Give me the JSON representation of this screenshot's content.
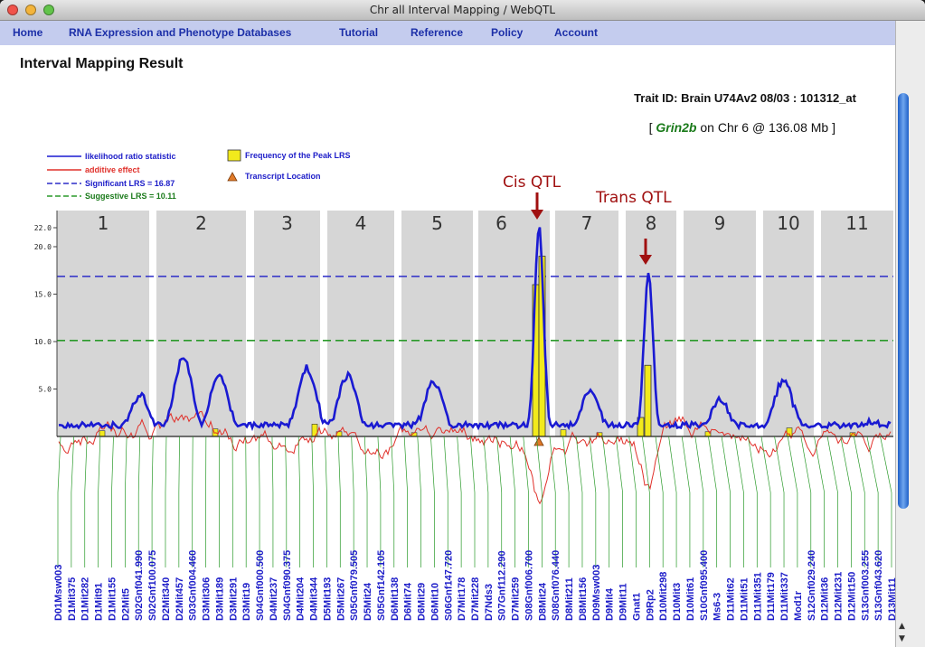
{
  "window": {
    "title": "Chr all Interval Mapping / WebQTL"
  },
  "nav": {
    "items": [
      "Home",
      "RNA Expression and Phenotype Databases",
      "Tutorial",
      "Reference",
      "Policy",
      "Account"
    ]
  },
  "page": {
    "title": "Interval Mapping Result",
    "trait_id": "Trait ID: Brain U74Av2 08/03 : 101312_at",
    "gene_prefix": "[ ",
    "gene": "Grin2b",
    "gene_suffix": " on Chr 6 @ 136.08 Mb ]"
  },
  "colors": {
    "lrs": "#1a1ad2",
    "additive": "#e0302a",
    "significant": "#2c2cc8",
    "suggestive": "#2a9a2a",
    "bars": "#f2ea1c",
    "marker_lines": "#2a9a2a",
    "annotation": "#a01010",
    "chr_band": "#d6d6d6",
    "triangle": "#e07a28"
  },
  "chart_data": {
    "type": "line",
    "legend": [
      "likelihood ratio statistic",
      "additive effect",
      "Significant LRS = 16.87",
      "Suggestive LRS = 10.11",
      "Frequency of the Peak LRS",
      "Transcript Location"
    ],
    "annotations": [
      "Cis QTL",
      "Trans QTL"
    ],
    "y_ticks": [
      22.0,
      20.0,
      15.0,
      10.0,
      5.0
    ],
    "y_tick_labels": [
      "22.0",
      "20.0",
      "15.0",
      "10.0",
      "5.0"
    ],
    "ylim": [
      0,
      23
    ],
    "significant": 16.87,
    "suggestive": 10.11,
    "chromosomes": [
      "1",
      "2",
      "3",
      "4",
      "5",
      "6",
      "7",
      "8",
      "9",
      "10",
      "11"
    ],
    "lrs_peaks": [
      {
        "chr": "1",
        "pos": 0.9,
        "lrs": 3.9
      },
      {
        "chr": "2",
        "pos": 0.3,
        "lrs": 8.0
      },
      {
        "chr": "2",
        "pos": 0.7,
        "lrs": 6.2
      },
      {
        "chr": "3",
        "pos": 0.8,
        "lrs": 6.8
      },
      {
        "chr": "4",
        "pos": 0.3,
        "lrs": 6.0
      },
      {
        "chr": "5",
        "pos": 0.45,
        "lrs": 5.3
      },
      {
        "chr": "6",
        "pos": 0.85,
        "lrs": 21.8
      },
      {
        "chr": "7",
        "pos": 0.55,
        "lrs": 4.5
      },
      {
        "chr": "8",
        "pos": 0.45,
        "lrs": 17.0
      },
      {
        "chr": "9",
        "pos": 0.5,
        "lrs": 3.5
      },
      {
        "chr": "10",
        "pos": 0.4,
        "lrs": 5.6
      },
      {
        "chr": "11",
        "pos": 0.7,
        "lrs": 1.2
      }
    ],
    "peak_frequency_bars": [
      {
        "chr": "6",
        "value": 16.0
      },
      {
        "chr": "6",
        "value": 19.0
      },
      {
        "chr": "8",
        "value": 2.0
      },
      {
        "chr": "8",
        "value": 7.5
      }
    ],
    "markers": [
      "D01Msw003",
      "D1Mit375",
      "D1Mit282",
      "D1Mit91",
      "D1Mit155",
      "D2Mit5",
      "S02Gnf041.990",
      "S02Gnf100.075",
      "D2Mit340",
      "D2Mit457",
      "S03Gnf004.460",
      "D3Mit306",
      "D3Mit189",
      "D3Mit291",
      "D3Mit19",
      "S04Gnf000.500",
      "D4Mit237",
      "S04Gnf090.375",
      "D4Mit204",
      "D4Mit344",
      "D5Mit193",
      "D5Mit267",
      "S05Gnf079.505",
      "D5Mit24",
      "S05Gnf142.105",
      "D6Mit138",
      "D6Mit74",
      "D6Mit29",
      "D6Mit10",
      "S06Gnf147.720",
      "D7Mit178",
      "D7Mit228",
      "D7Nds3",
      "S07Gnf112.290",
      "D7Mit259",
      "S08Gnf006.700",
      "D8Mit24",
      "S08Gnf076.440",
      "D8Mit211",
      "D8Mit156",
      "D09Msw003",
      "D9Mit4",
      "D9Mit11",
      "Gnat1",
      "D9Rp2",
      "D10Mit298",
      "D10Mit3",
      "D10Mit61",
      "S10Gnf095.400",
      "Ms6-3",
      "D11Mit62",
      "D11Mit51",
      "D11Mit351",
      "D11Mit179",
      "D11Mit337",
      "Mod1r",
      "S12Gnf029.240",
      "D12Mit36",
      "D12Mit231",
      "D12Mit150",
      "S13Gnf003.255",
      "S13Gnf043.620",
      "D13Mit11"
    ]
  }
}
